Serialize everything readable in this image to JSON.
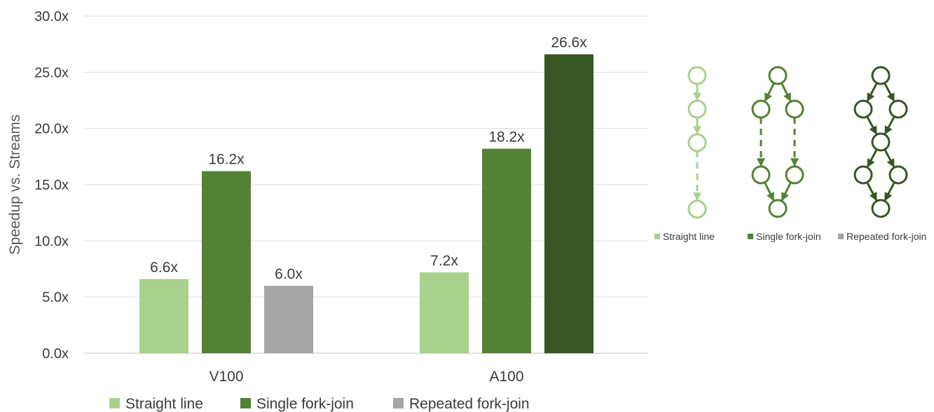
{
  "chart_data": {
    "type": "bar",
    "categories": [
      "V100",
      "A100"
    ],
    "series": [
      {
        "name": "Straight line",
        "values": [
          6.6,
          7.2
        ],
        "labels": [
          "6.6x",
          "7.2x"
        ],
        "color": "#a9d18e"
      },
      {
        "name": "Single fork-join",
        "values": [
          16.2,
          18.2
        ],
        "labels": [
          "16.2x",
          "18.2x"
        ],
        "color": "#548235"
      },
      {
        "name": "Repeated fork-join",
        "values": [
          6.0,
          26.6
        ],
        "labels": [
          "6.0x",
          "26.6x"
        ],
        "colors": [
          "#a5a5a5",
          "#375623"
        ],
        "color": "#a5a5a5"
      }
    ],
    "ylabel": "Speedup vs. Streams",
    "ylim": [
      0,
      30
    ],
    "yticks": [
      0,
      5,
      10,
      15,
      20,
      25,
      30
    ],
    "ytick_labels": [
      "0.0x",
      "5.0x",
      "10.0x",
      "15.0x",
      "20.0x",
      "25.0x",
      "30.0x"
    ],
    "grid": true,
    "legend_position": "bottom"
  },
  "inset": {
    "legend": [
      {
        "name": "Straight line",
        "color": "#a9d18e"
      },
      {
        "name": "Single fork-join",
        "color": "#548235"
      },
      {
        "name": "Repeated fork-join",
        "color": "#a5a5a5"
      }
    ],
    "graph_colors": [
      "#a9d18e",
      "#548235",
      "#375623"
    ]
  }
}
